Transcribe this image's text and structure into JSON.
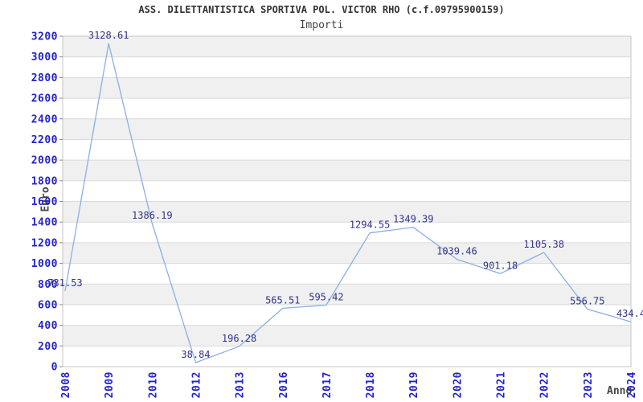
{
  "header": {
    "title": "ASS. DILETTANTISTICA SPORTIVA POL. VICTOR RHO (c.f.09795900159)",
    "subtitle": "Importi"
  },
  "chart_data": {
    "type": "line",
    "title": "ASS. DILETTANTISTICA SPORTIVA POL. VICTOR RHO (c.f.09795900159)",
    "subtitle": "Importi",
    "xlabel": "Anno",
    "ylabel": "Euro",
    "categories": [
      "2008",
      "2009",
      "2010",
      "2012",
      "2013",
      "2016",
      "2017",
      "2018",
      "2019",
      "2020",
      "2021",
      "2022",
      "2023",
      "2024"
    ],
    "series": [
      {
        "name": "Importi",
        "values": [
          731.53,
          3128.61,
          1386.19,
          38.84,
          196.28,
          565.51,
          595.42,
          1294.55,
          1349.39,
          1039.46,
          901.18,
          1105.38,
          556.75,
          434.4
        ]
      }
    ],
    "point_labels": [
      "731.53",
      "3128.61",
      "1386.19",
      "38.84",
      "196.28",
      "565.51",
      "595.42",
      "1294.55",
      "1349.39",
      "1039.46",
      "901.18",
      "1105.38",
      "556.75",
      "434.4"
    ],
    "ylim": [
      0,
      3200
    ],
    "ytick_step": 200,
    "grid": true,
    "alternating_bands": true,
    "legend": false,
    "colors": {
      "line": "#8ab0e4",
      "tick_text": "#2323cb",
      "point_label": "#333388",
      "band": "#f0f0f0",
      "gridline": "#dadada",
      "plot_border": "#c6c6c6",
      "tick_mark": "#8a8a8a",
      "title_text": "#333333",
      "axis_label_text": "#444444"
    }
  }
}
